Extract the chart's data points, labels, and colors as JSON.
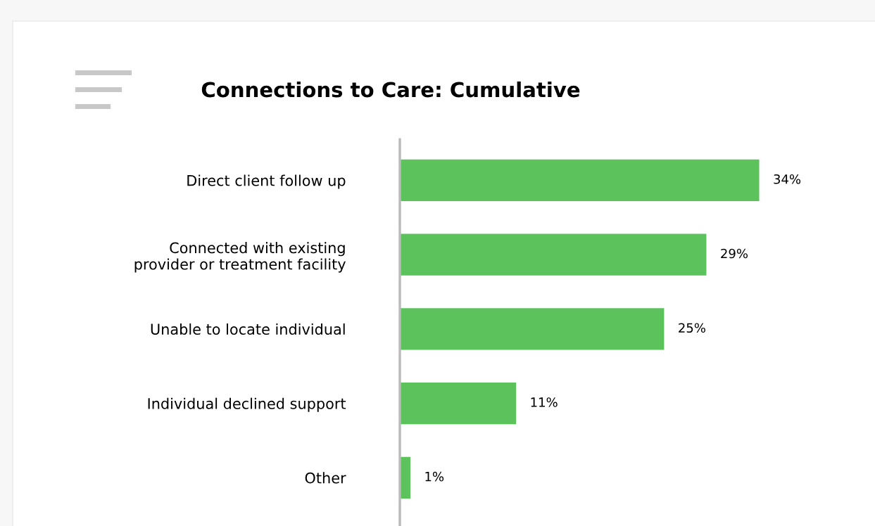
{
  "chart_data": {
    "type": "bar",
    "orientation": "horizontal",
    "title": "Connections to Care: Cumulative",
    "categories": [
      "Direct client follow up",
      "Connected with existing\nprovider or treatment facility",
      "Unable to locate individual",
      "Individual declined support",
      "Other"
    ],
    "values": [
      34,
      29,
      25,
      11,
      1
    ],
    "value_labels": [
      "34%",
      "29%",
      "25%",
      "11%",
      "1%"
    ],
    "color": "#5cc25c",
    "grid": false,
    "legend": false,
    "tick_labels": "y"
  }
}
